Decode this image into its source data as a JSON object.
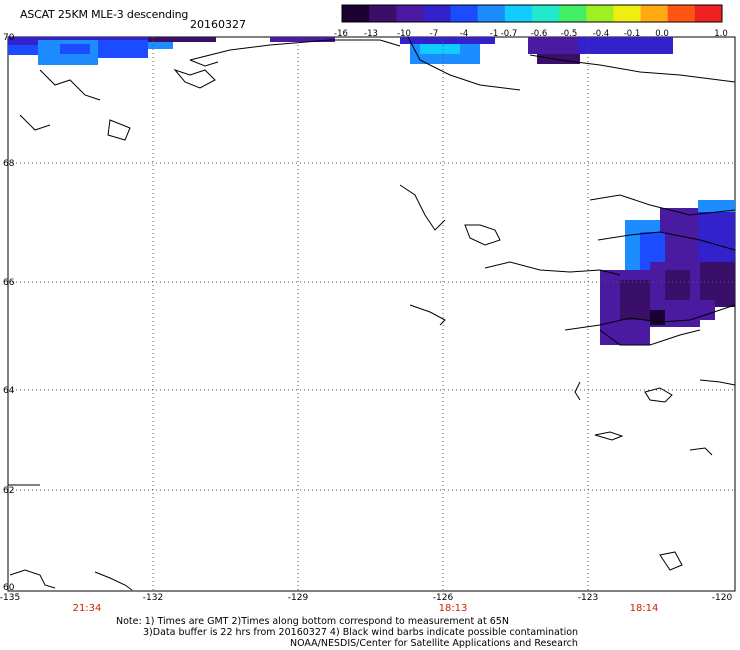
{
  "header": {
    "title": "ASCAT 25KM MLE-3 descending",
    "date": "20160327"
  },
  "colorbar": {
    "labels": [
      "-16",
      "-13",
      "-10",
      "-7",
      "-4",
      "-1",
      "-0.7",
      "-0.6",
      "-0.5",
      "-0.4",
      "-0.1",
      "0.0",
      "1.0"
    ],
    "colors": [
      "#1a0033",
      "#3a0f6a",
      "#4a1aa0",
      "#3322cc",
      "#1c4cff",
      "#1c8cff",
      "#11ccff",
      "#22e8cc",
      "#44ee66",
      "#9ef022",
      "#eeee11",
      "#ffaa11",
      "#ff5511",
      "#ee2222"
    ]
  },
  "axes": {
    "lat_labels": [
      "70",
      "68",
      "66",
      "64",
      "62",
      "60"
    ],
    "lon_labels": [
      "-135",
      "-132",
      "-129",
      "-126",
      "-123",
      "-120"
    ]
  },
  "time_labels": [
    "21:34",
    "18:13",
    "18:14"
  ],
  "notes": {
    "line1": "Note: 1) Times are GMT 2)Times along bottom correspond to measurement at 65N",
    "line2": "3)Data buffer is 22 hrs from 20160327 4) Black wind barbs indicate possible contamination",
    "line3": "NOAA/NESDIS/Center for Satellite Applications and Research"
  }
}
